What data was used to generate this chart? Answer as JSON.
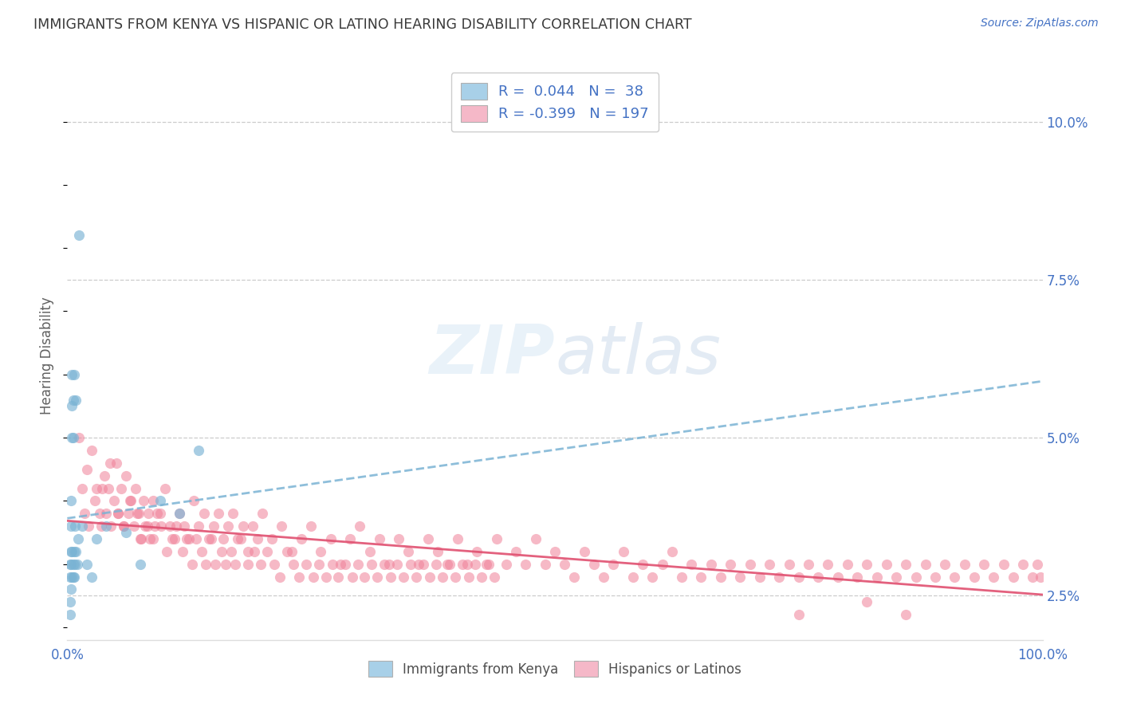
{
  "title": "IMMIGRANTS FROM KENYA VS HISPANIC OR LATINO HEARING DISABILITY CORRELATION CHART",
  "source": "Source: ZipAtlas.com",
  "ylabel": "Hearing Disability",
  "ytick_labels": [
    "2.5%",
    "5.0%",
    "7.5%",
    "10.0%"
  ],
  "ytick_values": [
    0.025,
    0.05,
    0.075,
    0.1
  ],
  "xlim": [
    0.0,
    1.0
  ],
  "ylim": [
    0.018,
    0.108
  ],
  "color_kenya": "#a8d0e8",
  "color_kenya_dot": "#7ab3d4",
  "color_hispanic": "#f5b8c8",
  "color_hispanic_dot": "#f08098",
  "color_text_blue": "#4472C4",
  "title_color": "#3a3a3a",
  "kenya_x": [
    0.003,
    0.003,
    0.003,
    0.003,
    0.004,
    0.004,
    0.004,
    0.004,
    0.004,
    0.005,
    0.005,
    0.005,
    0.005,
    0.005,
    0.006,
    0.006,
    0.006,
    0.006,
    0.007,
    0.007,
    0.007,
    0.008,
    0.008,
    0.009,
    0.009,
    0.01,
    0.011,
    0.012,
    0.015,
    0.02,
    0.025,
    0.03,
    0.04,
    0.06,
    0.075,
    0.095,
    0.115,
    0.135
  ],
  "kenya_y": [
    0.028,
    0.024,
    0.03,
    0.022,
    0.032,
    0.026,
    0.03,
    0.036,
    0.04,
    0.028,
    0.032,
    0.05,
    0.055,
    0.06,
    0.028,
    0.03,
    0.05,
    0.056,
    0.028,
    0.032,
    0.06,
    0.03,
    0.036,
    0.032,
    0.056,
    0.03,
    0.034,
    0.082,
    0.036,
    0.03,
    0.028,
    0.034,
    0.036,
    0.035,
    0.03,
    0.04,
    0.038,
    0.048
  ],
  "hispanic_x": [
    0.012,
    0.015,
    0.018,
    0.02,
    0.022,
    0.025,
    0.028,
    0.03,
    0.033,
    0.035,
    0.038,
    0.04,
    0.042,
    0.045,
    0.048,
    0.05,
    0.052,
    0.055,
    0.058,
    0.06,
    0.063,
    0.065,
    0.068,
    0.07,
    0.073,
    0.075,
    0.078,
    0.08,
    0.083,
    0.085,
    0.088,
    0.09,
    0.095,
    0.1,
    0.105,
    0.11,
    0.115,
    0.12,
    0.125,
    0.13,
    0.135,
    0.14,
    0.145,
    0.15,
    0.155,
    0.16,
    0.165,
    0.17,
    0.175,
    0.18,
    0.185,
    0.19,
    0.195,
    0.2,
    0.21,
    0.22,
    0.23,
    0.24,
    0.25,
    0.26,
    0.27,
    0.28,
    0.29,
    0.3,
    0.31,
    0.32,
    0.33,
    0.34,
    0.35,
    0.36,
    0.37,
    0.38,
    0.39,
    0.4,
    0.41,
    0.42,
    0.43,
    0.44,
    0.45,
    0.46,
    0.47,
    0.48,
    0.49,
    0.5,
    0.51,
    0.52,
    0.53,
    0.54,
    0.55,
    0.56,
    0.57,
    0.58,
    0.59,
    0.6,
    0.61,
    0.62,
    0.63,
    0.64,
    0.65,
    0.66,
    0.67,
    0.68,
    0.69,
    0.7,
    0.71,
    0.72,
    0.73,
    0.74,
    0.75,
    0.76,
    0.77,
    0.78,
    0.79,
    0.8,
    0.81,
    0.82,
    0.83,
    0.84,
    0.85,
    0.86,
    0.87,
    0.88,
    0.89,
    0.9,
    0.91,
    0.92,
    0.93,
    0.94,
    0.95,
    0.96,
    0.97,
    0.98,
    0.99,
    0.995,
    0.998,
    0.036,
    0.044,
    0.052,
    0.058,
    0.064,
    0.072,
    0.076,
    0.082,
    0.088,
    0.092,
    0.096,
    0.102,
    0.108,
    0.112,
    0.118,
    0.122,
    0.128,
    0.132,
    0.138,
    0.142,
    0.148,
    0.152,
    0.158,
    0.162,
    0.168,
    0.172,
    0.178,
    0.185,
    0.192,
    0.198,
    0.205,
    0.212,
    0.218,
    0.225,
    0.232,
    0.238,
    0.245,
    0.252,
    0.258,
    0.265,
    0.272,
    0.278,
    0.285,
    0.292,
    0.298,
    0.305,
    0.312,
    0.318,
    0.325,
    0.332,
    0.338,
    0.345,
    0.352,
    0.358,
    0.365,
    0.372,
    0.378,
    0.385,
    0.392,
    0.398,
    0.405,
    0.412,
    0.418,
    0.425,
    0.432,
    0.438,
    0.75,
    0.82,
    0.86
  ],
  "hispanic_y": [
    0.05,
    0.042,
    0.038,
    0.045,
    0.036,
    0.048,
    0.04,
    0.042,
    0.038,
    0.036,
    0.044,
    0.038,
    0.042,
    0.036,
    0.04,
    0.046,
    0.038,
    0.042,
    0.036,
    0.044,
    0.038,
    0.04,
    0.036,
    0.042,
    0.038,
    0.034,
    0.04,
    0.036,
    0.038,
    0.034,
    0.04,
    0.036,
    0.038,
    0.042,
    0.036,
    0.034,
    0.038,
    0.036,
    0.034,
    0.04,
    0.036,
    0.038,
    0.034,
    0.036,
    0.038,
    0.034,
    0.036,
    0.038,
    0.034,
    0.036,
    0.032,
    0.036,
    0.034,
    0.038,
    0.034,
    0.036,
    0.032,
    0.034,
    0.036,
    0.032,
    0.034,
    0.03,
    0.034,
    0.036,
    0.032,
    0.034,
    0.03,
    0.034,
    0.032,
    0.03,
    0.034,
    0.032,
    0.03,
    0.034,
    0.03,
    0.032,
    0.03,
    0.034,
    0.03,
    0.032,
    0.03,
    0.034,
    0.03,
    0.032,
    0.03,
    0.028,
    0.032,
    0.03,
    0.028,
    0.03,
    0.032,
    0.028,
    0.03,
    0.028,
    0.03,
    0.032,
    0.028,
    0.03,
    0.028,
    0.03,
    0.028,
    0.03,
    0.028,
    0.03,
    0.028,
    0.03,
    0.028,
    0.03,
    0.028,
    0.03,
    0.028,
    0.03,
    0.028,
    0.03,
    0.028,
    0.03,
    0.028,
    0.03,
    0.028,
    0.03,
    0.028,
    0.03,
    0.028,
    0.03,
    0.028,
    0.03,
    0.028,
    0.03,
    0.028,
    0.03,
    0.028,
    0.03,
    0.028,
    0.03,
    0.028,
    0.042,
    0.046,
    0.038,
    0.036,
    0.04,
    0.038,
    0.034,
    0.036,
    0.034,
    0.038,
    0.036,
    0.032,
    0.034,
    0.036,
    0.032,
    0.034,
    0.03,
    0.034,
    0.032,
    0.03,
    0.034,
    0.03,
    0.032,
    0.03,
    0.032,
    0.03,
    0.034,
    0.03,
    0.032,
    0.03,
    0.032,
    0.03,
    0.028,
    0.032,
    0.03,
    0.028,
    0.03,
    0.028,
    0.03,
    0.028,
    0.03,
    0.028,
    0.03,
    0.028,
    0.03,
    0.028,
    0.03,
    0.028,
    0.03,
    0.028,
    0.03,
    0.028,
    0.03,
    0.028,
    0.03,
    0.028,
    0.03,
    0.028,
    0.03,
    0.028,
    0.03,
    0.028,
    0.03,
    0.028,
    0.03,
    0.028,
    0.022,
    0.024,
    0.022
  ]
}
